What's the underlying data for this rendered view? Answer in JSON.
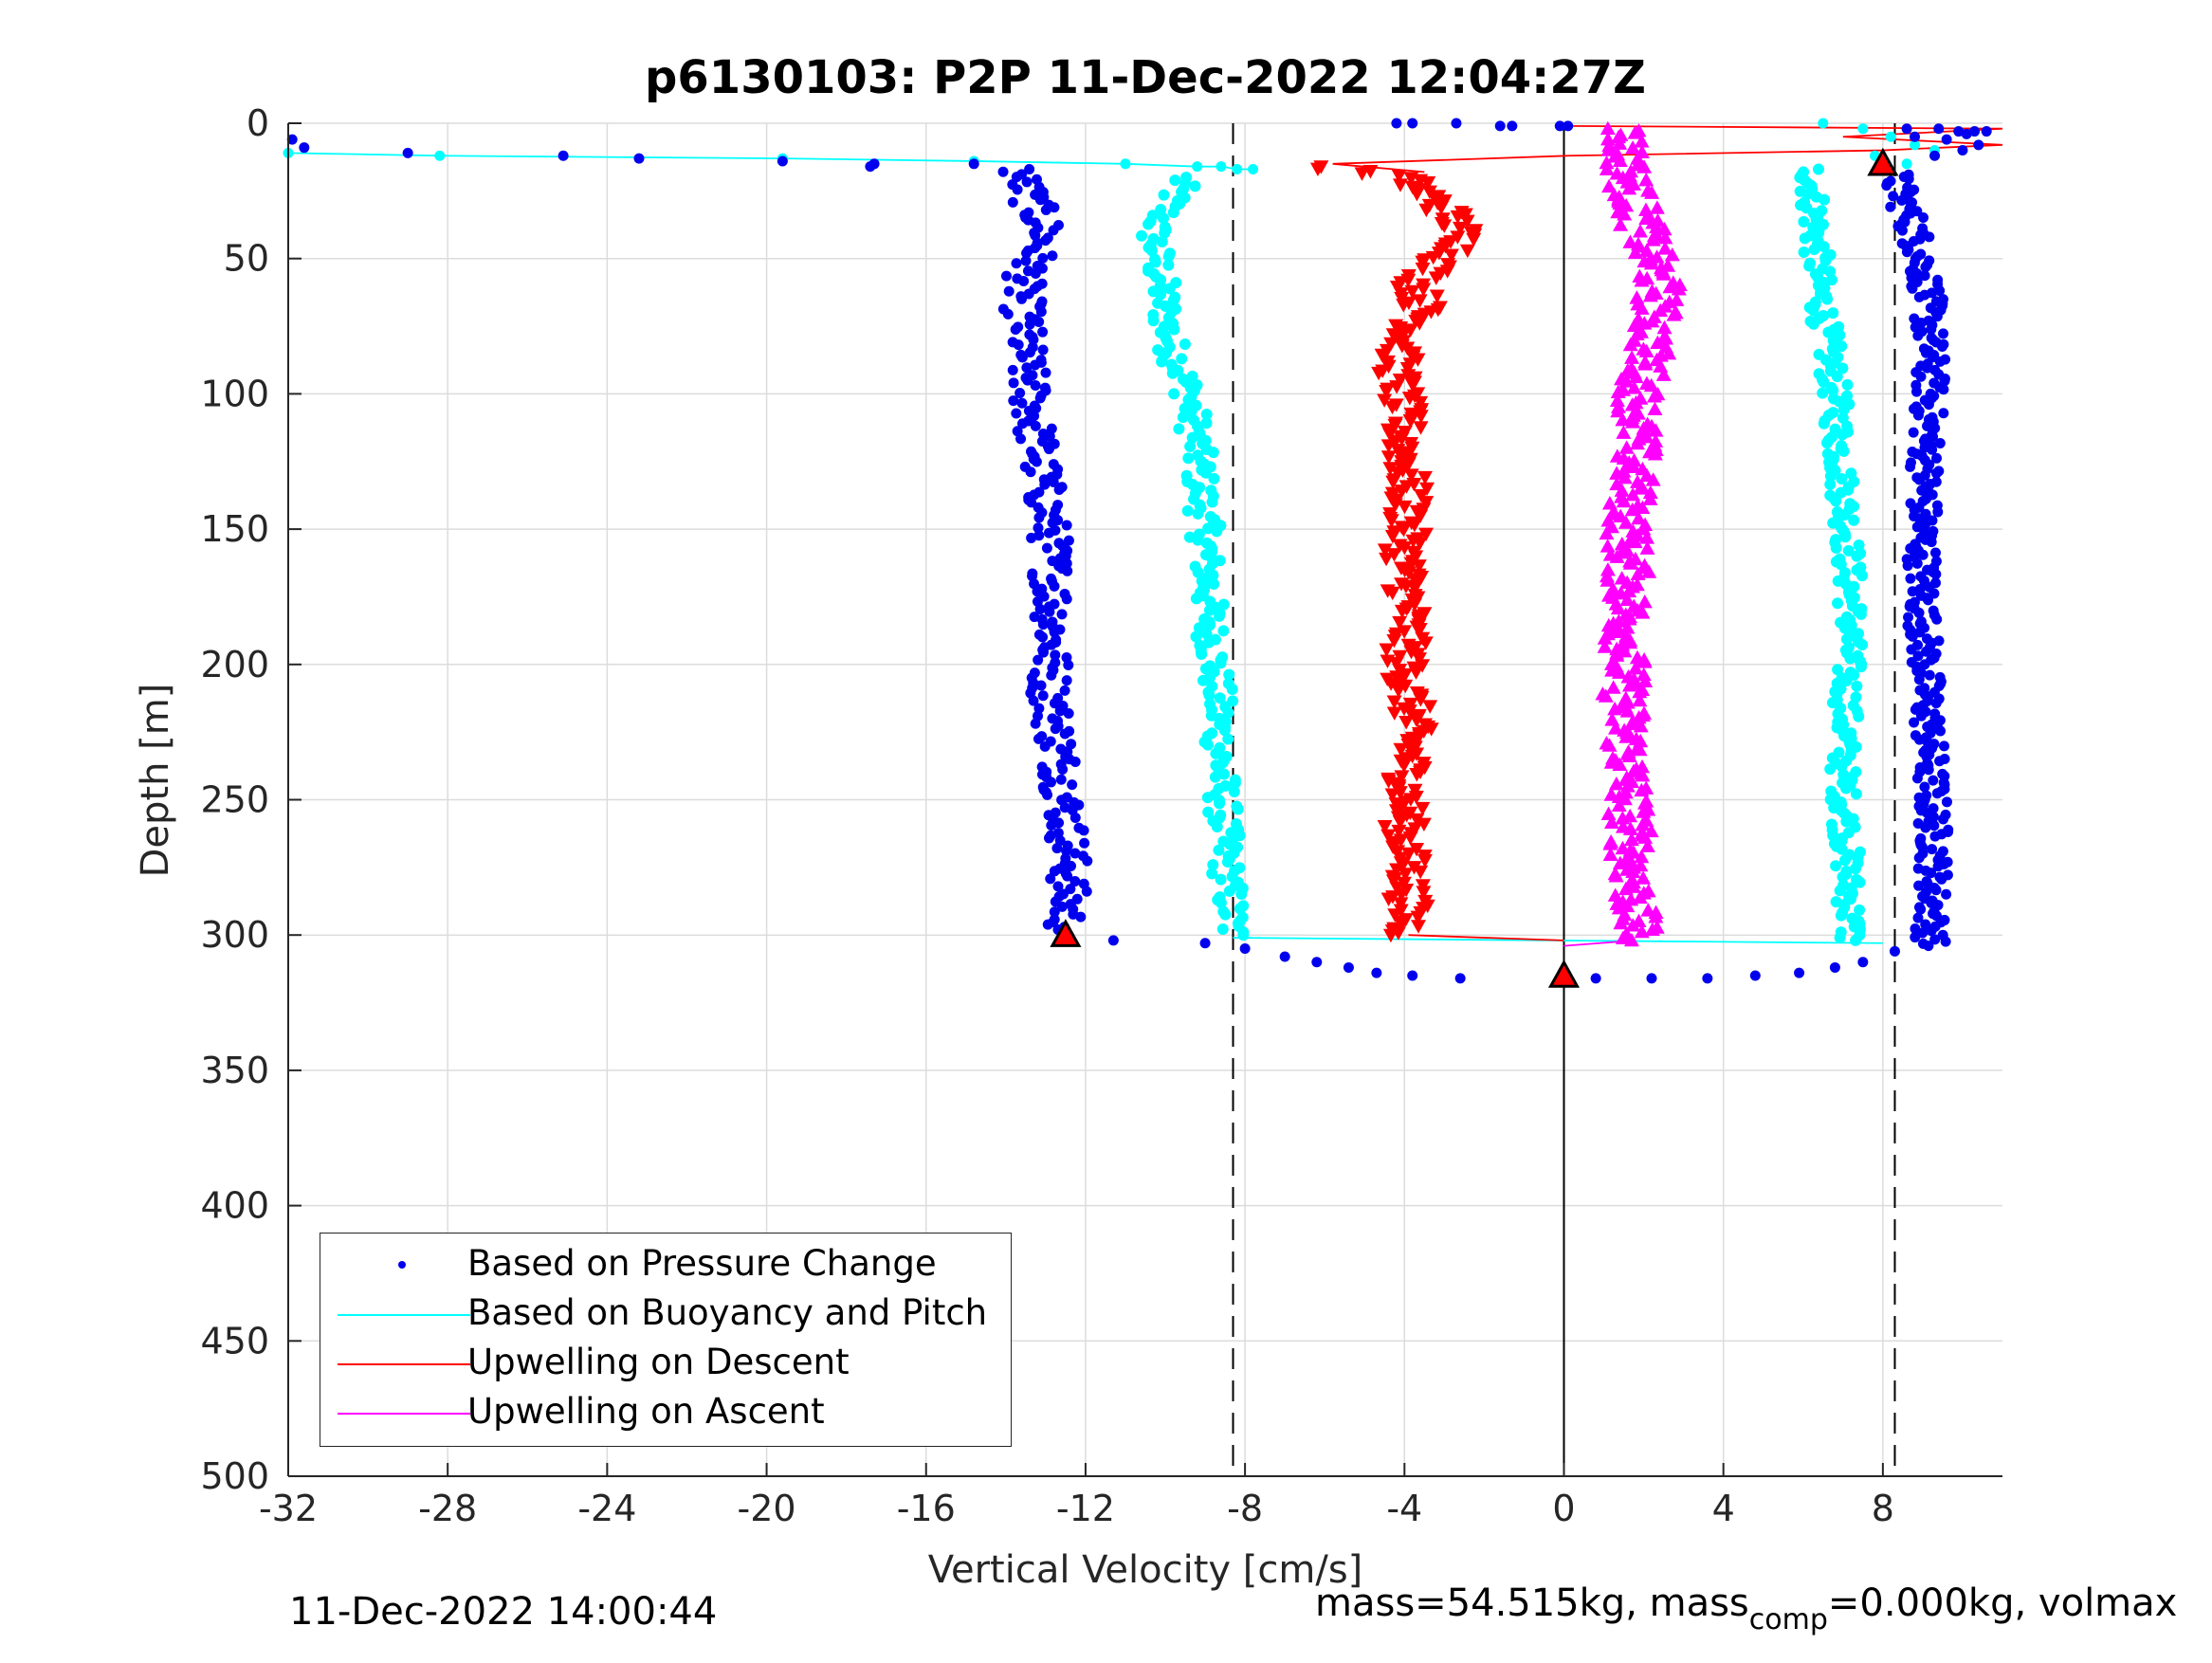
{
  "header": {
    "title": "p6130103: P2P 11-Dec-2022 12:04:27Z"
  },
  "footer": {
    "timestamp": "11-Dec-2022 14:00:44",
    "mass_text": "mass=54.515kg, mass",
    "mass_sub": "comp",
    "mass_tail": "=0.000kg, volmax"
  },
  "colors": {
    "pressure": "#0000ee",
    "buoyancy": "#00ffff",
    "descent": "#ff0000",
    "ascent": "#ff00ff",
    "grid": "#dcdcdc",
    "axis": "#262626",
    "marker_fill": "#ff0000"
  },
  "chart_data": {
    "type": "scatter",
    "title": "p6130103: P2P 11-Dec-2022 12:04:27Z",
    "xlabel": "Vertical Velocity [cm/s]",
    "ylabel": "Depth [m]",
    "xlim": [
      -32,
      11
    ],
    "ylim": [
      0,
      500
    ],
    "y_reversed": true,
    "grid": true,
    "xticks": [
      -32,
      -28,
      -24,
      -20,
      -16,
      -12,
      -8,
      -4,
      0,
      4,
      8
    ],
    "yticks": [
      0,
      50,
      100,
      150,
      200,
      250,
      300,
      350,
      400,
      450,
      500
    ],
    "vlines": [
      {
        "x": -8.3,
        "style": "dashed"
      },
      {
        "x": 8.3,
        "style": "dashed"
      },
      {
        "x": 0,
        "style": "solid"
      }
    ],
    "legend": {
      "position": "bottom-left",
      "entries": [
        "Based on Pressure Change",
        "Based on Buoyancy and Pitch",
        "Upwelling on Descent",
        "Upwelling on Ascent"
      ]
    },
    "series": [
      {
        "name": "Based on Pressure Change",
        "descent_profile": {
          "depth": [
            18,
            40,
            60,
            90,
            120,
            150,
            180,
            210,
            240,
            270,
            300
          ],
          "velocity": [
            -13.7,
            -13.0,
            -13.6,
            -13.5,
            -13.2,
            -12.9,
            -12.8,
            -12.9,
            -12.6,
            -12.4,
            -12.5
          ]
        },
        "ascent_profile": {
          "depth": [
            20,
            40,
            60,
            90,
            120,
            150,
            180,
            210,
            240,
            270,
            300
          ],
          "velocity": [
            8.3,
            8.8,
            9.1,
            9.2,
            9.1,
            9.0,
            9.0,
            9.1,
            9.2,
            9.3,
            9.2
          ]
        },
        "surface_descent": {
          "depth": [
            6,
            9,
            11,
            12,
            13,
            14,
            15,
            15,
            16
          ],
          "velocity": [
            -31.9,
            -31.6,
            -29.0,
            -25.1,
            -23.2,
            -19.6,
            -17.3,
            -14.8,
            -17.4
          ]
        },
        "surface_top": {
          "depth": [
            0,
            0,
            0,
            1,
            1,
            1,
            1,
            2,
            2,
            3,
            3,
            3,
            4,
            5,
            6,
            8,
            10,
            12
          ],
          "velocity": [
            -4.2,
            -3.8,
            -2.7,
            -1.6,
            -1.3,
            -0.1,
            0.1,
            8.6,
            9.4,
            9.9,
            10.3,
            10.6,
            10.1,
            8.8,
            9.6,
            10.4,
            10.0,
            9.3
          ]
        },
        "bottom_turn": {
          "depth": [
            302,
            303,
            305,
            308,
            310,
            312,
            314,
            315,
            316,
            316,
            316,
            316,
            315,
            314,
            312,
            310,
            306
          ],
          "velocity": [
            -11.3,
            -9.0,
            -8.0,
            -7.0,
            -6.2,
            -5.4,
            -4.7,
            -3.8,
            -2.6,
            0.8,
            2.2,
            3.6,
            4.8,
            5.9,
            6.8,
            7.5,
            8.3
          ]
        }
      },
      {
        "name": "Based on Buoyancy and Pitch",
        "surface_line": {
          "depth": [
            11,
            12,
            13,
            14,
            15,
            16,
            16,
            17,
            17
          ],
          "velocity": [
            -32,
            -28.2,
            -19.6,
            -14.8,
            -11.0,
            -9.2,
            -8.6,
            -8.2,
            -7.8
          ]
        },
        "descent_profile": {
          "depth": [
            22,
            40,
            60,
            80,
            100,
            120,
            150,
            180,
            210,
            240,
            270,
            300
          ],
          "velocity": [
            -9.6,
            -10.3,
            -10.1,
            -9.9,
            -9.4,
            -9.2,
            -9.0,
            -8.9,
            -8.7,
            -8.6,
            -8.5,
            -8.3
          ]
        },
        "ascent_profile": {
          "depth": [
            18,
            40,
            60,
            80,
            100,
            120,
            150,
            180,
            210,
            240,
            270,
            300
          ],
          "velocity": [
            6.2,
            6.3,
            6.4,
            6.6,
            6.8,
            6.9,
            7.1,
            7.2,
            7.1,
            7.0,
            7.1,
            7.2
          ]
        },
        "bottom_line": {
          "depth": [
            301,
            303
          ],
          "velocity": [
            -8.3,
            8.0
          ]
        },
        "surface_ascent": {
          "depth": [
            0,
            2,
            5,
            8,
            10,
            12,
            15
          ],
          "velocity": [
            6.5,
            7.5,
            8.2,
            8.8,
            9.3,
            7.8,
            8.6
          ]
        }
      },
      {
        "name": "Upwelling on Descent",
        "profile": {
          "depth": [
            16,
            20,
            25,
            30,
            35,
            40,
            45,
            50,
            60,
            70,
            80,
            90,
            100,
            120,
            140,
            160,
            180,
            200,
            220,
            240,
            260,
            280,
            300
          ],
          "velocity": [
            -6.2,
            -4.0,
            -3.6,
            -3.1,
            -2.8,
            -2.6,
            -2.5,
            -3.0,
            -3.7,
            -3.5,
            -4.0,
            -4.2,
            -4.1,
            -4.0,
            -3.9,
            -4.0,
            -3.9,
            -4.0,
            -3.8,
            -3.9,
            -4.0,
            -3.9,
            -3.9
          ]
        },
        "top_line": {
          "depth": [
            1,
            2,
            5,
            8,
            10,
            12,
            15,
            18
          ],
          "velocity": [
            0,
            11,
            7.0,
            11,
            8.0,
            0.1,
            -5.8,
            -3.5
          ]
        },
        "bottom_line": {
          "depth": [
            300,
            302
          ],
          "velocity": [
            -3.9,
            0
          ]
        }
      },
      {
        "name": "Upwelling on Ascent",
        "profile": {
          "depth": [
            2,
            20,
            40,
            60,
            80,
            100,
            120,
            150,
            180,
            210,
            240,
            270,
            300
          ],
          "velocity": [
            1.5,
            1.6,
            2.0,
            2.4,
            2.2,
            1.9,
            1.8,
            1.6,
            1.6,
            1.5,
            1.6,
            1.7,
            1.8
          ]
        },
        "bottom_line": {
          "depth": [
            302,
            304
          ],
          "velocity": [
            1.8,
            0
          ]
        }
      },
      {
        "name": "markers",
        "points": [
          {
            "x": -12.5,
            "y": 300
          },
          {
            "x": 0,
            "y": 315
          },
          {
            "x": 8.0,
            "y": 15
          }
        ]
      }
    ]
  }
}
